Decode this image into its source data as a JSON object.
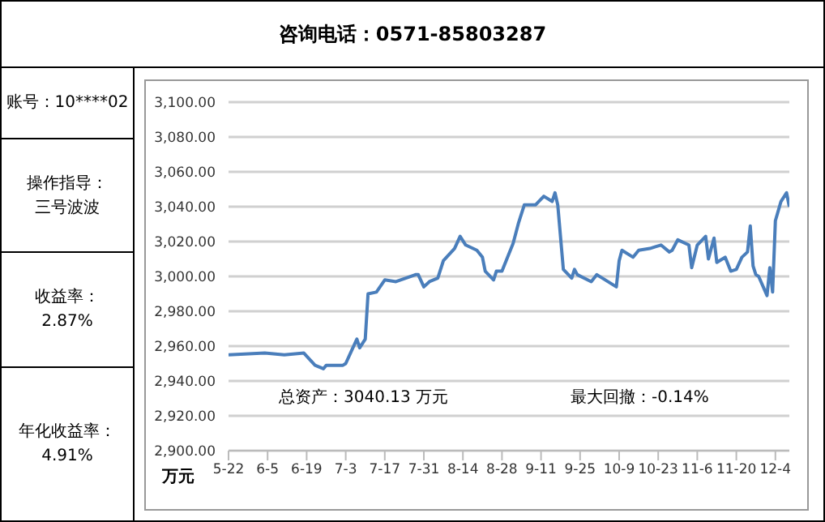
{
  "chart_data": {
    "type": "line",
    "title": "咨询电话：0571-85803287",
    "ylabel": "万元",
    "annotations": [
      "账号：10****02",
      "操作指导：",
      "三号波波",
      "收益率：",
      "2.87%",
      "年化收益率：",
      "4.91%",
      "总资产：3040.13 万元",
      "最大回撤：-0.14%"
    ],
    "x": [
      "--05-22",
      "--06-04",
      "--06-11",
      "--06-18",
      "--06-22",
      "--06-25",
      "--06-26",
      "--07-02",
      "--07-03",
      "--07-05",
      "--07-07",
      "--07-08",
      "--07-10",
      "--07-11",
      "--07-14",
      "--07-17",
      "--07-21",
      "--07-28",
      "--07-29",
      "--07-31",
      "--08-02",
      "--08-05",
      "--08-07",
      "--08-11",
      "--08-13",
      "--08-15",
      "--08-19",
      "--08-21",
      "--08-22",
      "--08-25",
      "--08-26",
      "--08-28",
      "--09-01",
      "--09-03",
      "--09-05",
      "--09-09",
      "--09-12",
      "--09-15",
      "--09-16",
      "--09-17",
      "--09-19",
      "--09-22",
      "--09-23",
      "--09-24",
      "--09-29",
      "--10-01",
      "--10-08",
      "--10-09",
      "--10-10",
      "--10-14",
      "--10-16",
      "--10-20",
      "--10-22",
      "--10-24",
      "--10-27",
      "--10-28",
      "--10-30",
      "--11-03",
      "--11-04",
      "--11-06",
      "--11-09",
      "--11-10",
      "--11-12",
      "--11-13",
      "--11-15",
      "--11-16",
      "--11-18",
      "--11-20",
      "--11-22",
      "--11-24",
      "--11-25",
      "--11-26",
      "--11-27",
      "--11-28",
      "--12-01",
      "--12-02",
      "--12-03",
      "--12-04",
      "--12-06",
      "--12-08",
      "--12-09"
    ],
    "series": [
      {
        "color": "#4a7ebb",
        "values": [
          2955,
          2956,
          2955,
          2956,
          2949,
          2947,
          2949,
          2949,
          2950,
          2957,
          2964,
          2959,
          2964,
          2990,
          2991,
          2998,
          2997,
          3001,
          3001,
          2994,
          2997,
          2999,
          3009,
          3016,
          3023,
          3018,
          3015,
          3011,
          3003,
          2998,
          3003,
          3003,
          3019,
          3031,
          3041,
          3041,
          3046,
          3043,
          3048,
          3041,
          3004,
          2999,
          3004,
          3001,
          2997,
          3001,
          2994,
          3009,
          3015,
          3011,
          3015,
          3016,
          3017,
          3018,
          3014,
          3015,
          3021,
          3018,
          3005,
          3018,
          3023,
          3010,
          3022,
          3008,
          3010,
          3011,
          3003,
          3004,
          3011,
          3014,
          3029,
          3006,
          3001,
          3000,
          2989,
          3005,
          2991,
          3032,
          3043,
          3048,
          3040
        ]
      }
    ],
    "xlim": [
      "--05-22",
      "--12-09"
    ],
    "xticks": [
      {
        "value": "--05-22",
        "label": "5-22"
      },
      {
        "value": "--06-05",
        "label": "6-5"
      },
      {
        "value": "--06-19",
        "label": "6-19"
      },
      {
        "value": "--07-03",
        "label": "7-3"
      },
      {
        "value": "--07-17",
        "label": "7-17"
      },
      {
        "value": "--07-31",
        "label": "7-31"
      },
      {
        "value": "--08-14",
        "label": "8-14"
      },
      {
        "value": "--08-28",
        "label": "8-28"
      },
      {
        "value": "--09-11",
        "label": "9-11"
      },
      {
        "value": "--09-25",
        "label": "9-25"
      },
      {
        "value": "--10-09",
        "label": "10-9"
      },
      {
        "value": "--10-23",
        "label": "10-23"
      },
      {
        "value": "--11-06",
        "label": "11-6"
      },
      {
        "value": "--11-20",
        "label": "11-20"
      },
      {
        "value": "--12-04",
        "label": "12-4"
      }
    ],
    "ylim": [
      2900,
      3100
    ],
    "yticks": [
      {
        "value": 2900,
        "label": "2,900.00"
      },
      {
        "value": 2920,
        "label": "2,920.00"
      },
      {
        "value": 2940,
        "label": "2,940.00"
      },
      {
        "value": 2960,
        "label": "2,960.00"
      },
      {
        "value": 2980,
        "label": "2,980.00"
      },
      {
        "value": 3000,
        "label": "3,000.00"
      },
      {
        "value": 3020,
        "label": "3,020.00"
      },
      {
        "value": 3040,
        "label": "3,040.00"
      },
      {
        "value": 3060,
        "label": "3,060.00"
      },
      {
        "value": 3080,
        "label": "3,080.00"
      },
      {
        "value": 3100,
        "label": "3,100.00"
      }
    ],
    "grid": "y",
    "legend": false,
    "marker": "none",
    "line_style": "solid"
  }
}
